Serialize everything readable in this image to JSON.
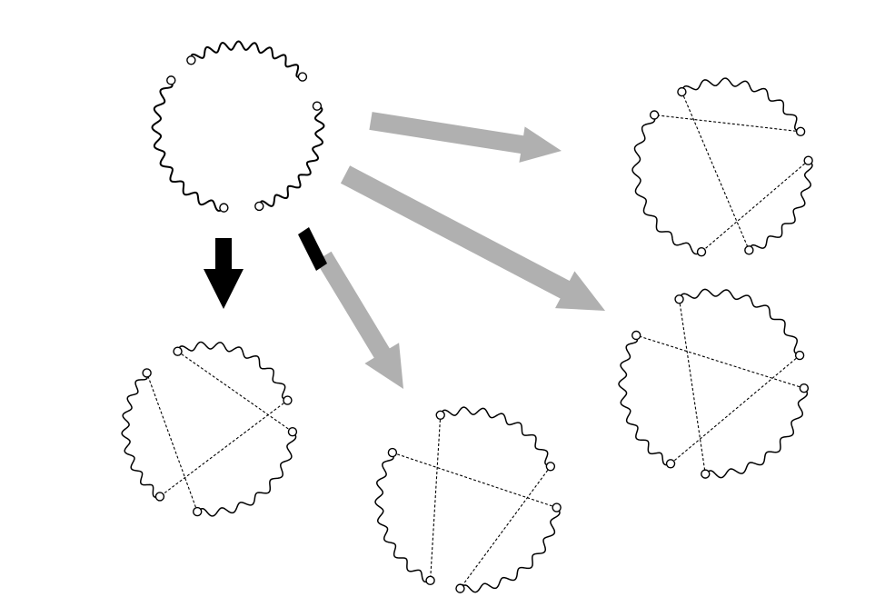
{
  "colors": {
    "background": "#ffffff",
    "stroke": "#000000",
    "arrow_primary": "#000000",
    "arrow_secondary": "#b0b0b0"
  },
  "source": {
    "name": "open-wavy-ring",
    "arc_count": 3,
    "endpoint_count": 6
  },
  "results": [
    {
      "name": "result-pairing-1",
      "arrow": "primary"
    },
    {
      "name": "result-pairing-2",
      "arrow": "secondary"
    },
    {
      "name": "result-pairing-3",
      "arrow": "secondary"
    },
    {
      "name": "result-pairing-4",
      "arrow": "secondary"
    }
  ]
}
